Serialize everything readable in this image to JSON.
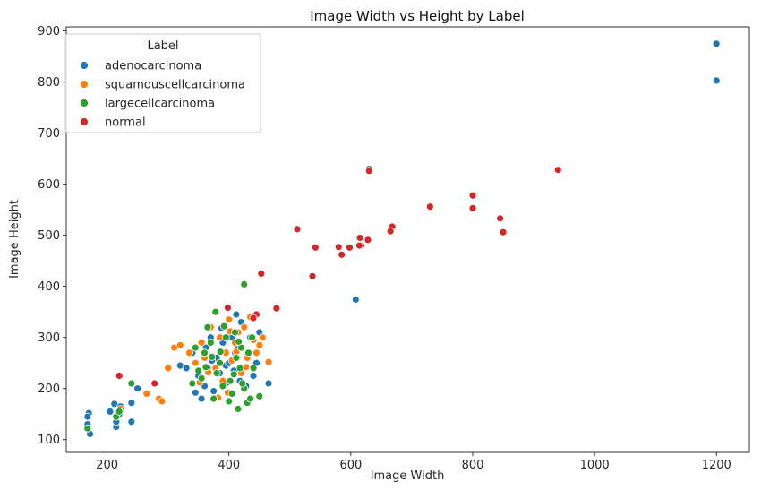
{
  "chart_data": {
    "type": "scatter",
    "title": "Image Width vs Height by Label",
    "xlabel": "Image Width",
    "ylabel": "Image Height",
    "xlim": [
      133,
      1254
    ],
    "ylim": [
      75,
      908
    ],
    "xticks": [
      200,
      400,
      600,
      800,
      1000,
      1200
    ],
    "yticks": [
      100,
      200,
      300,
      400,
      500,
      600,
      700,
      800,
      900
    ],
    "grid": false,
    "legend": {
      "title": "Label",
      "position": "top-left"
    },
    "series": [
      {
        "name": "adenocarcinoma",
        "color": "#1f77b4",
        "points": [
          [
            1200,
            875
          ],
          [
            1200,
            803
          ],
          [
            608,
            374
          ],
          [
            170,
            152
          ],
          [
            168,
            145
          ],
          [
            172,
            111
          ],
          [
            168,
            130
          ],
          [
            205,
            155
          ],
          [
            212,
            170
          ],
          [
            215,
            125
          ],
          [
            215,
            135
          ],
          [
            220,
            150
          ],
          [
            222,
            165
          ],
          [
            240,
            172
          ],
          [
            240,
            135
          ],
          [
            250,
            200
          ],
          [
            320,
            245
          ],
          [
            330,
            240
          ],
          [
            340,
            270
          ],
          [
            350,
            225
          ],
          [
            355,
            180
          ],
          [
            345,
            192
          ],
          [
            360,
            205
          ],
          [
            365,
            240
          ],
          [
            370,
            300
          ],
          [
            375,
            195
          ],
          [
            380,
            260
          ],
          [
            385,
            230
          ],
          [
            390,
            290
          ],
          [
            395,
            245
          ],
          [
            400,
            250
          ],
          [
            405,
            300
          ],
          [
            410,
            270
          ],
          [
            415,
            280
          ],
          [
            420,
            330
          ],
          [
            425,
            240
          ],
          [
            430,
            265
          ],
          [
            435,
            300
          ],
          [
            440,
            225
          ],
          [
            445,
            250
          ],
          [
            450,
            310
          ],
          [
            465,
            210
          ],
          [
            412,
            345
          ],
          [
            398,
            212
          ],
          [
            372,
            255
          ],
          [
            362,
            280
          ],
          [
            388,
            318
          ],
          [
            428,
            205
          ],
          [
            418,
            215
          ],
          [
            408,
            235
          ]
        ]
      },
      {
        "name": "squamouscellcarcinoma",
        "color": "#ff7f0e",
        "points": [
          [
            630,
            628
          ],
          [
            222,
            160
          ],
          [
            265,
            190
          ],
          [
            285,
            180
          ],
          [
            290,
            175
          ],
          [
            300,
            240
          ],
          [
            310,
            280
          ],
          [
            320,
            285
          ],
          [
            335,
            270
          ],
          [
            345,
            250
          ],
          [
            355,
            290
          ],
          [
            360,
            260
          ],
          [
            370,
            320
          ],
          [
            378,
            240
          ],
          [
            385,
            300
          ],
          [
            390,
            215
          ],
          [
            395,
            270
          ],
          [
            400,
            335
          ],
          [
            405,
            255
          ],
          [
            410,
            290
          ],
          [
            415,
            310
          ],
          [
            420,
            230
          ],
          [
            425,
            320
          ],
          [
            430,
            260
          ],
          [
            435,
            340
          ],
          [
            440,
            295
          ],
          [
            445,
            270
          ],
          [
            450,
            285
          ],
          [
            455,
            300
          ],
          [
            465,
            252
          ],
          [
            382,
            182
          ],
          [
            398,
            192
          ],
          [
            412,
            272
          ],
          [
            428,
            242
          ],
          [
            366,
            232
          ],
          [
            352,
            212
          ],
          [
            402,
            312
          ]
        ]
      },
      {
        "name": "largecellcarcinoma",
        "color": "#2ca02c",
        "points": [
          [
            630,
            630
          ],
          [
            168,
            122
          ],
          [
            215,
            145
          ],
          [
            220,
            155
          ],
          [
            240,
            210
          ],
          [
            340,
            210
          ],
          [
            350,
            235
          ],
          [
            355,
            220
          ],
          [
            360,
            270
          ],
          [
            365,
            320
          ],
          [
            370,
            290
          ],
          [
            375,
            180
          ],
          [
            378,
            350
          ],
          [
            380,
            230
          ],
          [
            385,
            250
          ],
          [
            390,
            205
          ],
          [
            395,
            300
          ],
          [
            400,
            175
          ],
          [
            402,
            215
          ],
          [
            405,
            190
          ],
          [
            410,
            310
          ],
          [
            412,
            260
          ],
          [
            415,
            160
          ],
          [
            418,
            240
          ],
          [
            420,
            280
          ],
          [
            425,
            200
          ],
          [
            430,
            172
          ],
          [
            432,
            270
          ],
          [
            435,
            180
          ],
          [
            438,
            300
          ],
          [
            440,
            240
          ],
          [
            450,
            185
          ],
          [
            425,
            404
          ],
          [
            345,
            280
          ],
          [
            392,
            322
          ],
          [
            408,
            228
          ],
          [
            372,
            262
          ],
          [
            422,
            210
          ],
          [
            386,
            272
          ],
          [
            416,
            292
          ],
          [
            362,
            242
          ]
        ]
      },
      {
        "name": "normal",
        "color": "#d62728",
        "points": [
          [
            940,
            628
          ],
          [
            630,
            626
          ],
          [
            800,
            578
          ],
          [
            800,
            553
          ],
          [
            845,
            533
          ],
          [
            850,
            506
          ],
          [
            730,
            556
          ],
          [
            668,
            517
          ],
          [
            665,
            508
          ],
          [
            615,
            495
          ],
          [
            628,
            491
          ],
          [
            617,
            480
          ],
          [
            614,
            480
          ],
          [
            598,
            476
          ],
          [
            580,
            477
          ],
          [
            585,
            462
          ],
          [
            542,
            476
          ],
          [
            537,
            420
          ],
          [
            512,
            512
          ],
          [
            453,
            425
          ],
          [
            478,
            357
          ],
          [
            398,
            358
          ],
          [
            445,
            345
          ],
          [
            220,
            225
          ],
          [
            278,
            210
          ],
          [
            440,
            338
          ]
        ]
      }
    ]
  }
}
